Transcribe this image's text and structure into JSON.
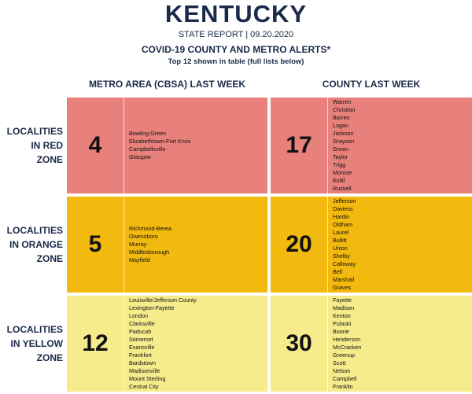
{
  "header": {
    "title": "KENTUCKY",
    "subtitle": "STATE REPORT | 09.20.2020",
    "heading": "COVID-19 COUNTY AND METRO ALERTS*",
    "note": "Top 12 shown in table (full lists below)"
  },
  "table": {
    "columns": [
      "METRO AREA (CBSA) LAST WEEK",
      "COUNTY LAST WEEK"
    ],
    "rows": [
      {
        "label": [
          "LOCALITIES",
          "IN RED",
          "ZONE"
        ],
        "color": "#e8807b",
        "metro_count": 4,
        "metros": [
          "Bowling Green",
          "Elizabethtown-Fort Knox",
          "Campbellsville",
          "Glasgow"
        ],
        "county_count": 17,
        "counties": [
          "Warren",
          "Christian",
          "Barren",
          "Logan",
          "Jackson",
          "Grayson",
          "Green",
          "Taylor",
          "Trigg",
          "Monroe",
          "Estill",
          "Russell"
        ]
      },
      {
        "label": [
          "LOCALITIES",
          "IN ORANGE",
          "ZONE"
        ],
        "color": "#f2b90f",
        "metro_count": 5,
        "metros": [
          "Richmond-Berea",
          "Owensboro",
          "Murray",
          "Middlesborough",
          "Mayfield"
        ],
        "county_count": 20,
        "counties": [
          "Jefferson",
          "Daviess",
          "Hardin",
          "Oldham",
          "Laurel",
          "Bullitt",
          "Union",
          "Shelby",
          "Calloway",
          "Bell",
          "Marshall",
          "Graves"
        ]
      },
      {
        "label": [
          "LOCALITIES",
          "IN YELLOW",
          "ZONE"
        ],
        "color": "#f6ec8c",
        "metro_count": 12,
        "metros": [
          "Louisville/Jefferson County",
          "Lexington-Fayette",
          "London",
          "Clarksville",
          "Paducah",
          "Somerset",
          "Evansville",
          "Frankfort",
          "Bardstown",
          "Madisonville",
          "Mount Sterling",
          "Central City"
        ],
        "county_count": 30,
        "counties": [
          "Fayette",
          "Madison",
          "Kenton",
          "Pulaski",
          "Boone",
          "Henderson",
          "McCracken",
          "Greenup",
          "Scott",
          "Nelson",
          "Campbell",
          "Franklin"
        ]
      }
    ]
  }
}
